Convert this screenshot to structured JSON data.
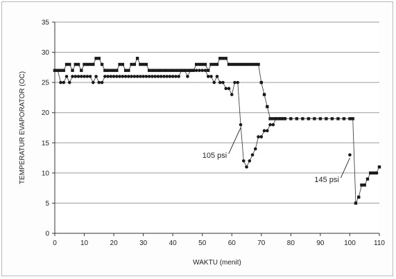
{
  "chart_data": {
    "type": "scatter",
    "xlabel": "WAKTU (menit)",
    "ylabel": "TEMPERATUR EVAPORATOR (OC)",
    "xlim": [
      0,
      110
    ],
    "ylim": [
      0,
      35
    ],
    "x_ticks": [
      0,
      10,
      20,
      30,
      40,
      50,
      60,
      70,
      80,
      90,
      100,
      110
    ],
    "y_ticks": [
      0,
      5,
      10,
      15,
      20,
      25,
      30,
      35
    ],
    "grid": "horizontal",
    "legend": "none",
    "colors": {
      "grid": "#9a9a9a",
      "marker": "#1a1a1a",
      "line": "#444444",
      "plot_bg": "#ffffff"
    },
    "series": [
      {
        "marker": "square",
        "points": [
          [
            0,
            27
          ],
          [
            1,
            27
          ],
          [
            2,
            27
          ],
          [
            3,
            27
          ],
          [
            4,
            28
          ],
          [
            5,
            28
          ],
          [
            6,
            27
          ],
          [
            7,
            28
          ],
          [
            8,
            28
          ],
          [
            9,
            27
          ],
          [
            10,
            28
          ],
          [
            11,
            28
          ],
          [
            12,
            28
          ],
          [
            13,
            28
          ],
          [
            14,
            29
          ],
          [
            15,
            29
          ],
          [
            16,
            28
          ],
          [
            17,
            27
          ],
          [
            18,
            27
          ],
          [
            19,
            27
          ],
          [
            20,
            27
          ],
          [
            21,
            27
          ],
          [
            22,
            28
          ],
          [
            23,
            28
          ],
          [
            24,
            27
          ],
          [
            25,
            27
          ],
          [
            26,
            28
          ],
          [
            27,
            28
          ],
          [
            28,
            29
          ],
          [
            29,
            28
          ],
          [
            30,
            28
          ],
          [
            31,
            28
          ],
          [
            32,
            27
          ],
          [
            33,
            27
          ],
          [
            34,
            27
          ],
          [
            35,
            27
          ],
          [
            36,
            27
          ],
          [
            37,
            27
          ],
          [
            38,
            27
          ],
          [
            39,
            27
          ],
          [
            40,
            27
          ],
          [
            41,
            27
          ],
          [
            42,
            27
          ],
          [
            43,
            27
          ],
          [
            44,
            27
          ],
          [
            45,
            27
          ],
          [
            46,
            27
          ],
          [
            47,
            27
          ],
          [
            48,
            28
          ],
          [
            49,
            28
          ],
          [
            50,
            28
          ],
          [
            51,
            28
          ],
          [
            52,
            27
          ],
          [
            53,
            28
          ],
          [
            54,
            28
          ],
          [
            55,
            28
          ],
          [
            56,
            29
          ],
          [
            57,
            29
          ],
          [
            58,
            29
          ],
          [
            59,
            28
          ],
          [
            60,
            28
          ],
          [
            61,
            28
          ],
          [
            62,
            28
          ],
          [
            63,
            28
          ],
          [
            64,
            28
          ],
          [
            65,
            28
          ],
          [
            66,
            28
          ],
          [
            67,
            28
          ],
          [
            68,
            28
          ],
          [
            69,
            28
          ],
          [
            70,
            25
          ],
          [
            71,
            23
          ],
          [
            72,
            21
          ],
          [
            73,
            19
          ],
          [
            74,
            19
          ],
          [
            75,
            19
          ],
          [
            76,
            19
          ],
          [
            77,
            19
          ],
          [
            78,
            19
          ],
          [
            80,
            19
          ],
          [
            82,
            19
          ],
          [
            84,
            19
          ],
          [
            86,
            19
          ],
          [
            88,
            19
          ],
          [
            90,
            19
          ],
          [
            92,
            19
          ],
          [
            94,
            19
          ],
          [
            96,
            19
          ],
          [
            98,
            19
          ],
          [
            100,
            19
          ],
          [
            101,
            19
          ],
          [
            102,
            5
          ],
          [
            103,
            6
          ],
          [
            104,
            8
          ],
          [
            105,
            8
          ],
          [
            106,
            9
          ],
          [
            107,
            10
          ],
          [
            108,
            10
          ],
          [
            109,
            10
          ],
          [
            110,
            11
          ]
        ]
      },
      {
        "marker": "circle",
        "points": [
          [
            0,
            27
          ],
          [
            1,
            27
          ],
          [
            2,
            25
          ],
          [
            3,
            25
          ],
          [
            4,
            26
          ],
          [
            5,
            25
          ],
          [
            6,
            26
          ],
          [
            7,
            26
          ],
          [
            8,
            26
          ],
          [
            9,
            26
          ],
          [
            10,
            26
          ],
          [
            11,
            26
          ],
          [
            12,
            26
          ],
          [
            13,
            25
          ],
          [
            14,
            26
          ],
          [
            15,
            25
          ],
          [
            16,
            25
          ],
          [
            17,
            26
          ],
          [
            18,
            26
          ],
          [
            19,
            26
          ],
          [
            20,
            26
          ],
          [
            21,
            26
          ],
          [
            22,
            26
          ],
          [
            23,
            26
          ],
          [
            24,
            26
          ],
          [
            25,
            26
          ],
          [
            26,
            26
          ],
          [
            27,
            26
          ],
          [
            28,
            26
          ],
          [
            29,
            26
          ],
          [
            30,
            26
          ],
          [
            31,
            26
          ],
          [
            32,
            26
          ],
          [
            33,
            26
          ],
          [
            34,
            26
          ],
          [
            35,
            26
          ],
          [
            36,
            26
          ],
          [
            37,
            26
          ],
          [
            38,
            26
          ],
          [
            39,
            26
          ],
          [
            40,
            26
          ],
          [
            41,
            26
          ],
          [
            42,
            26
          ],
          [
            43,
            27
          ],
          [
            44,
            27
          ],
          [
            45,
            26
          ],
          [
            46,
            27
          ],
          [
            47,
            27
          ],
          [
            48,
            27
          ],
          [
            49,
            27
          ],
          [
            50,
            27
          ],
          [
            51,
            27
          ],
          [
            52,
            26
          ],
          [
            53,
            26
          ],
          [
            54,
            25
          ],
          [
            55,
            26
          ],
          [
            56,
            25
          ],
          [
            57,
            25
          ],
          [
            58,
            24
          ],
          [
            59,
            24
          ],
          [
            60,
            23
          ],
          [
            61,
            25
          ],
          [
            62,
            25
          ],
          [
            63,
            18
          ],
          [
            64,
            12
          ],
          [
            65,
            11
          ],
          [
            66,
            12
          ],
          [
            67,
            13
          ],
          [
            68,
            14
          ],
          [
            69,
            16
          ],
          [
            70,
            16
          ],
          [
            71,
            17
          ],
          [
            72,
            17
          ],
          [
            73,
            18
          ],
          [
            74,
            18
          ],
          [
            75,
            19
          ],
          [
            76,
            19
          ],
          [
            77,
            19
          ],
          [
            78,
            19
          ],
          [
            100,
            13
          ]
        ]
      }
    ],
    "annotations": [
      {
        "text": "105 psi",
        "x": 50,
        "y": 12.5,
        "arrow_to": [
          63,
          17.5
        ]
      },
      {
        "text": "145 psi",
        "x": 88,
        "y": 8.5,
        "arrow_to": [
          100,
          12.5
        ]
      }
    ]
  }
}
